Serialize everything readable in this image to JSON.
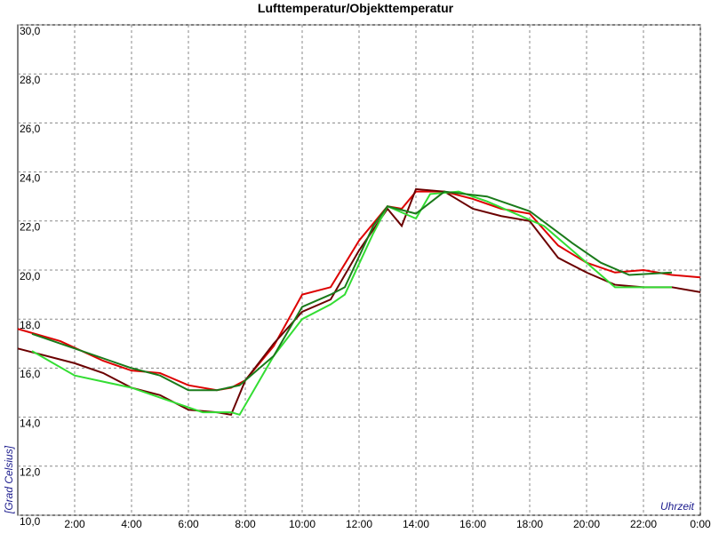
{
  "chart_data": {
    "type": "line",
    "title": "Lufttemperatur/Objekttemperatur",
    "x_label": "Uhrzeit",
    "y_label": "[Grad Celsius]",
    "xlim": [
      0,
      24
    ],
    "ylim": [
      10,
      30
    ],
    "grid": true,
    "xticks": [
      {
        "value": 2,
        "label": "2:00"
      },
      {
        "value": 4,
        "label": "4:00"
      },
      {
        "value": 6,
        "label": "6:00"
      },
      {
        "value": 8,
        "label": "8:00"
      },
      {
        "value": 10,
        "label": "10:00"
      },
      {
        "value": 12,
        "label": "12:00"
      },
      {
        "value": 14,
        "label": "14:00"
      },
      {
        "value": 16,
        "label": "16:00"
      },
      {
        "value": 18,
        "label": "18:00"
      },
      {
        "value": 20,
        "label": "20:00"
      },
      {
        "value": 22,
        "label": "22:00"
      },
      {
        "value": 24,
        "label": "0:00"
      }
    ],
    "yticks": [
      {
        "value": 10,
        "label": "10,0"
      },
      {
        "value": 12,
        "label": "12,0"
      },
      {
        "value": 14,
        "label": "14,0"
      },
      {
        "value": 16,
        "label": "16,0"
      },
      {
        "value": 18,
        "label": "18,0"
      },
      {
        "value": 20,
        "label": "20,0"
      },
      {
        "value": 22,
        "label": "22,0"
      },
      {
        "value": 24,
        "label": "24,0"
      },
      {
        "value": 26,
        "label": "26,0"
      },
      {
        "value": 28,
        "label": "28,0"
      },
      {
        "value": 30,
        "label": "30,0"
      }
    ],
    "series": [
      {
        "color": "#dd0000",
        "x": [
          0,
          1.5,
          3,
          4,
          5,
          6,
          7,
          7.5,
          8,
          9,
          10,
          11,
          12,
          13,
          13.5,
          14,
          15,
          16,
          17,
          18,
          19,
          20,
          21,
          22,
          23,
          24
        ],
        "values": [
          17.6,
          17.1,
          16.3,
          15.9,
          15.8,
          15.3,
          15.1,
          15.2,
          15.5,
          16.9,
          19.0,
          19.3,
          21.2,
          22.6,
          22.5,
          23.2,
          23.2,
          22.9,
          22.5,
          22.3,
          21.0,
          20.3,
          19.9,
          20.0,
          19.8,
          19.7
        ]
      },
      {
        "color": "#6b0000",
        "x": [
          0,
          2,
          3,
          4,
          5,
          6,
          7,
          7.5,
          8,
          9,
          10,
          11,
          12,
          13,
          13.5,
          14,
          15,
          16,
          17,
          18,
          19,
          20,
          21,
          22,
          23,
          24
        ],
        "values": [
          16.8,
          16.2,
          15.8,
          15.2,
          14.9,
          14.3,
          14.2,
          14.1,
          15.5,
          17.0,
          18.3,
          18.8,
          20.8,
          22.5,
          21.8,
          23.3,
          23.2,
          22.5,
          22.2,
          22.0,
          20.5,
          19.9,
          19.4,
          19.3,
          19.3,
          19.1
        ]
      },
      {
        "color": "#33dd33",
        "x": [
          0.5,
          2,
          4,
          5,
          6.5,
          7.5,
          7.8,
          9,
          10,
          11,
          11.5,
          12.5,
          13,
          14,
          14.5,
          15.5,
          16.5,
          17.5,
          18.5,
          20,
          21,
          22,
          23
        ],
        "values": [
          16.7,
          15.7,
          15.2,
          14.8,
          14.2,
          14.2,
          14.1,
          16.5,
          18.0,
          18.6,
          19.0,
          21.5,
          22.6,
          22.1,
          23.1,
          23.2,
          22.8,
          22.3,
          21.8,
          20.3,
          19.3,
          19.3,
          19.3
        ]
      },
      {
        "color": "#1a7a1a",
        "x": [
          0.5,
          2,
          4,
          5,
          6,
          7,
          7.8,
          9,
          10,
          11,
          11.5,
          12.5,
          13,
          14,
          15,
          16.5,
          18,
          19.5,
          20.5,
          21.5,
          23
        ],
        "values": [
          17.4,
          16.8,
          16.0,
          15.7,
          15.1,
          15.1,
          15.3,
          16.5,
          18.5,
          19.0,
          19.3,
          21.8,
          22.6,
          22.3,
          23.2,
          23.0,
          22.4,
          21.1,
          20.3,
          19.8,
          19.9
        ]
      }
    ]
  }
}
